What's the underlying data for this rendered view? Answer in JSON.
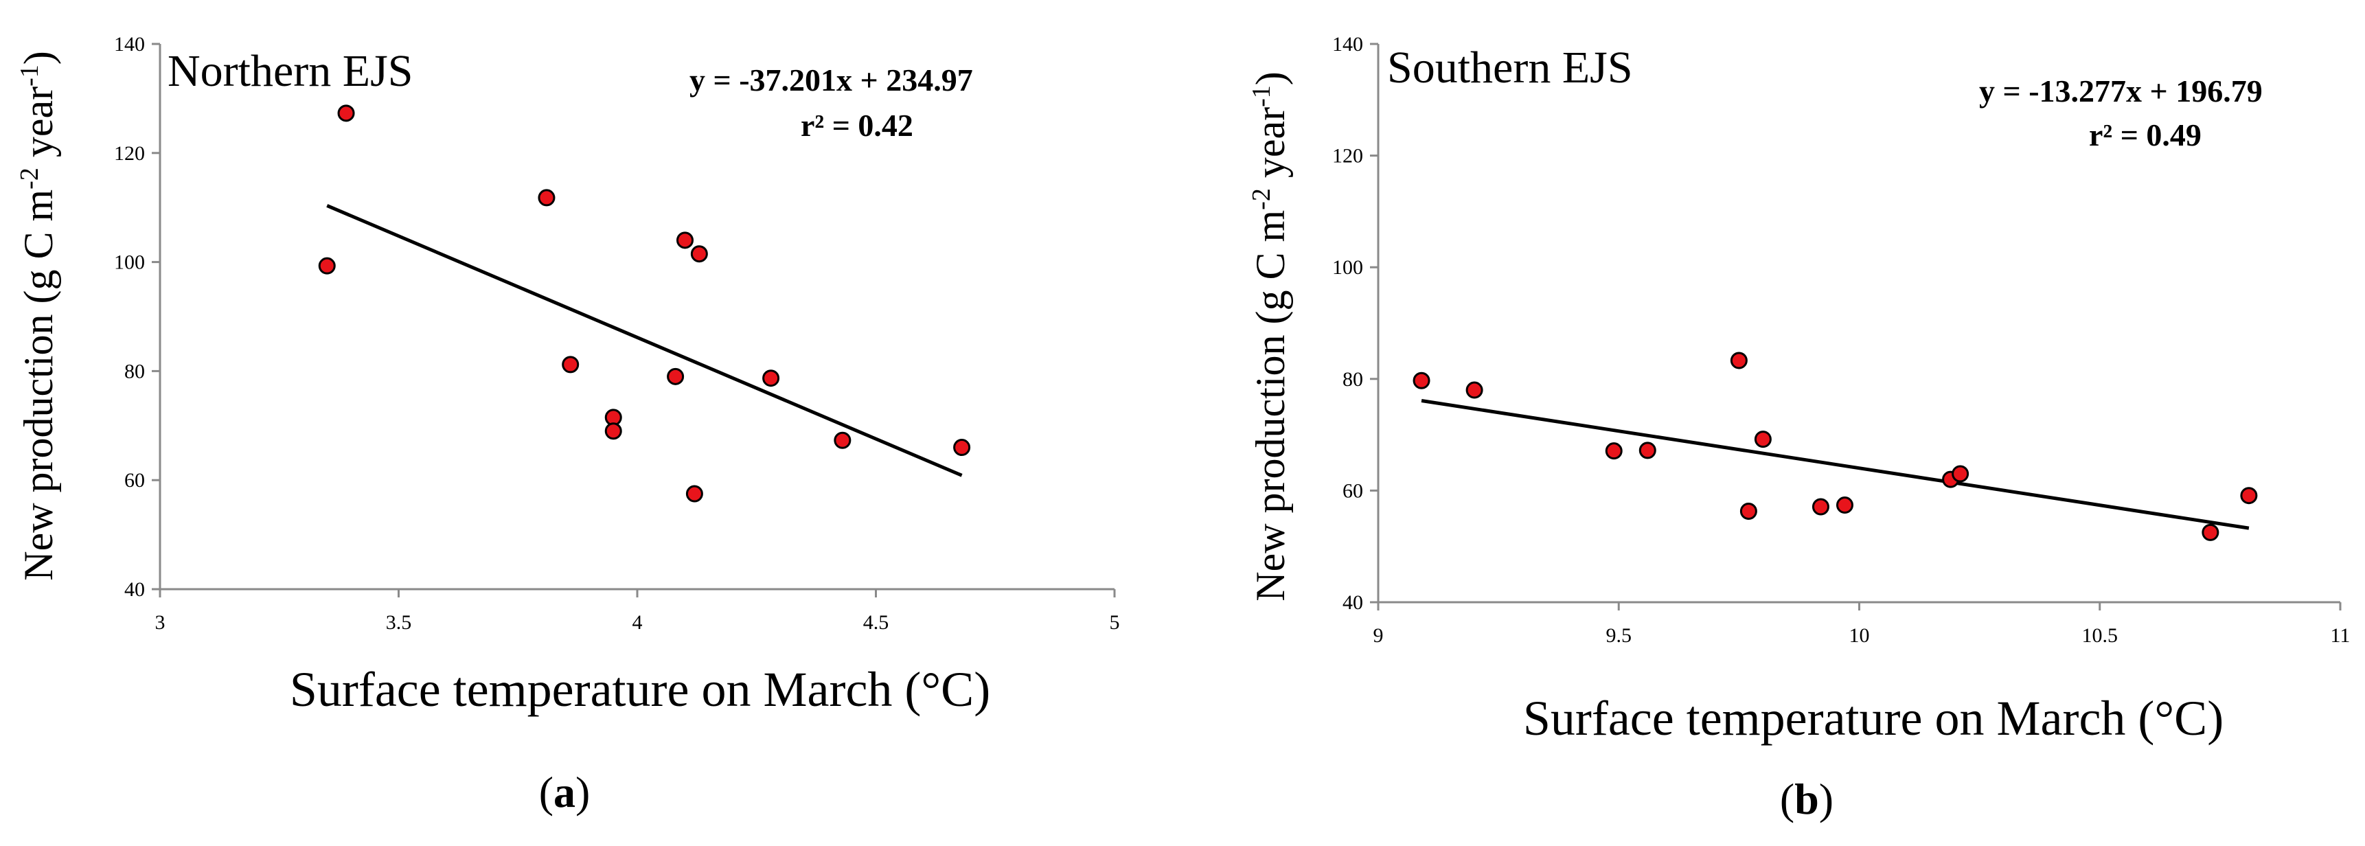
{
  "chart_data": [
    {
      "type": "scatter",
      "panel_label": "a",
      "title": "Northern EJS",
      "xlabel": "Surface temperature on March (°C)",
      "ylabel": "New production (g C m-2 year-1)",
      "xlim": [
        3,
        5
      ],
      "ylim": [
        40,
        140
      ],
      "x_ticks": [
        "3",
        "3.5",
        "4",
        "4.5",
        "5"
      ],
      "y_ticks": [
        "40",
        "60",
        "80",
        "100",
        "120",
        "140"
      ],
      "series": [
        {
          "name": "Northern EJS",
          "points": [
            {
              "x": 3.35,
              "y": 99.3
            },
            {
              "x": 3.39,
              "y": 127.3
            },
            {
              "x": 3.81,
              "y": 111.8
            },
            {
              "x": 3.86,
              "y": 81.2
            },
            {
              "x": 3.95,
              "y": 71.5
            },
            {
              "x": 3.95,
              "y": 69.0
            },
            {
              "x": 4.08,
              "y": 79.0
            },
            {
              "x": 4.1,
              "y": 104.0
            },
            {
              "x": 4.12,
              "y": 57.5
            },
            {
              "x": 4.13,
              "y": 101.5
            },
            {
              "x": 4.28,
              "y": 78.7
            },
            {
              "x": 4.43,
              "y": 67.3
            },
            {
              "x": 4.68,
              "y": 66.0
            }
          ]
        }
      ],
      "trendline": {
        "slope": -37.201,
        "intercept": 234.97,
        "x_range": [
          3.35,
          4.68
        ]
      },
      "equation_text": "y = -37.201x + 234.97",
      "r2_text": "r² = 0.42"
    },
    {
      "type": "scatter",
      "panel_label": "b",
      "title": "Southern EJS",
      "xlabel": "Surface temperature on March (°C)",
      "ylabel": "New production (g C m-2 year-1)",
      "xlim": [
        9,
        11
      ],
      "ylim": [
        40,
        140
      ],
      "x_ticks": [
        "9",
        "9.5",
        "10",
        "10.5",
        "11"
      ],
      "y_ticks": [
        "40",
        "60",
        "80",
        "100",
        "120",
        "140"
      ],
      "series": [
        {
          "name": "Southern EJS",
          "points": [
            {
              "x": 9.09,
              "y": 79.7
            },
            {
              "x": 9.2,
              "y": 78.0
            },
            {
              "x": 9.49,
              "y": 67.1
            },
            {
              "x": 9.56,
              "y": 67.2
            },
            {
              "x": 9.75,
              "y": 83.3
            },
            {
              "x": 9.77,
              "y": 56.3
            },
            {
              "x": 9.8,
              "y": 69.2
            },
            {
              "x": 9.92,
              "y": 57.1
            },
            {
              "x": 9.97,
              "y": 57.4
            },
            {
              "x": 10.19,
              "y": 62.0
            },
            {
              "x": 10.21,
              "y": 63.0
            },
            {
              "x": 10.73,
              "y": 52.5
            },
            {
              "x": 10.81,
              "y": 59.1
            }
          ]
        }
      ],
      "trendline": {
        "slope": -13.277,
        "intercept": 196.79,
        "x_range": [
          9.09,
          10.81
        ]
      },
      "equation_text": "y = -13.277x + 196.79",
      "r2_text": "r² = 0.49"
    }
  ],
  "captions": {
    "a": {
      "open": "(",
      "label": "a",
      "close": ")"
    },
    "b": {
      "open": "(",
      "label": "b",
      "close": ")"
    }
  },
  "colors": {
    "marker_fill": "#e8141b",
    "marker_stroke": "#000000",
    "axis": "#8a8a8a",
    "trendline": "#000000"
  }
}
